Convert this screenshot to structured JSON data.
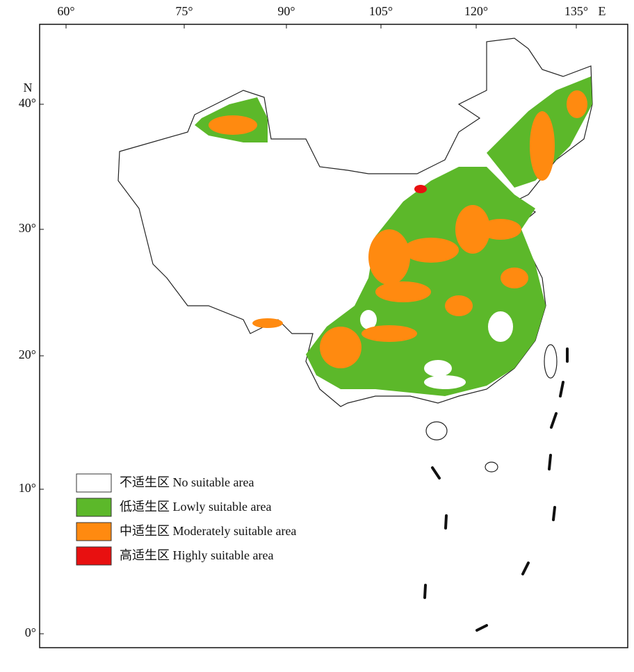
{
  "top_axis": {
    "labels": [
      "60°",
      "75°",
      "90°",
      "105°",
      "120°",
      "135°"
    ],
    "direction": "E"
  },
  "left_axis": {
    "direction": "N",
    "labels": [
      "40°",
      "30°",
      "20°",
      "10°",
      "0°"
    ]
  },
  "legend": {
    "items": [
      {
        "label": "不适生区 No suitable   area",
        "color": "#ffffff"
      },
      {
        "label": "低适生区 Lowly suitable   area",
        "color": "#5cb82a"
      },
      {
        "label": "中适生区 Moderately suitable area",
        "color": "#ff8a10"
      },
      {
        "label": "高适生区 Highly suitable area",
        "color": "#e81010"
      }
    ]
  }
}
